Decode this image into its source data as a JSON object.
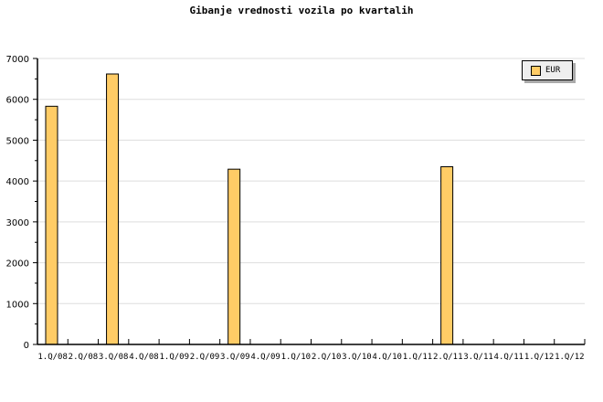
{
  "chart_data": {
    "type": "bar",
    "title": "Gibanje vrednosti vozila po kvartalih",
    "categories": [
      "1.Q/08",
      "2.Q/08",
      "3.Q/08",
      "4.Q/08",
      "1.Q/09",
      "2.Q/09",
      "3.Q/09",
      "4.Q/09",
      "1.Q/10",
      "2.Q/10",
      "3.Q/10",
      "4.Q/10",
      "1.Q/11",
      "2.Q/11",
      "3.Q/11",
      "4.Q/11",
      "1.Q/12",
      "1.Q/12"
    ],
    "series": [
      {
        "name": "EUR",
        "color": "#ffcc66",
        "values": [
          5830,
          null,
          6620,
          null,
          null,
          null,
          4290,
          null,
          null,
          null,
          null,
          null,
          null,
          4350,
          null,
          null,
          null,
          null
        ]
      }
    ],
    "ylim": [
      0,
      7000
    ],
    "yticks": [
      0,
      1000,
      2000,
      3000,
      4000,
      5000,
      6000,
      7000
    ],
    "grid": true,
    "legend": "top-right"
  }
}
